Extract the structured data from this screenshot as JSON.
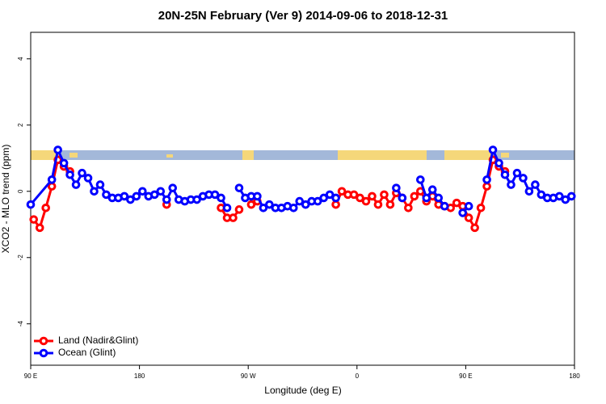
{
  "chart_data": {
    "type": "line",
    "title": "20N-25N February (Ver 9)   2014-09-06 to 2018-12-31",
    "x_label": "Longitude (deg E)",
    "y_label": "XCO2 - MLO trend (ppm)",
    "xlim": [
      90,
      540
    ],
    "ylim": [
      -5.25,
      4.8
    ],
    "xticks": [
      {
        "value": 90,
        "label": "90 E"
      },
      180,
      {
        "value": 270,
        "label": "90 W"
      },
      {
        "value": 360,
        "label": "0"
      },
      {
        "value": 450,
        "label": "90 E"
      },
      {
        "value": 540,
        "label": "180"
      }
    ],
    "yticks": [
      -4,
      -2,
      0,
      2,
      4
    ],
    "legend": "bottom-left",
    "series": [
      {
        "name": "Land (Nadir&Glint)",
        "color": "#ff0000",
        "x": [
          92.5,
          97.5,
          102.5,
          107.5,
          112.5,
          117.5,
          122.5,
          null,
          202.5,
          null,
          247.5,
          252.5,
          257.5,
          262.5,
          null,
          272.5,
          277.5,
          null,
          342.5,
          347.5,
          352.5,
          357.5,
          362.5,
          367.5,
          372.5,
          377.5,
          382.5,
          387.5,
          392.5,
          397.5,
          402.5,
          407.5,
          412.5,
          417.5,
          422.5,
          427.5,
          432.5,
          437.5,
          442.5,
          447.5,
          452.5,
          457.5,
          462.5,
          467.5,
          472.5,
          477.5,
          482.5
        ],
        "values": [
          -0.85,
          -1.1,
          -0.5,
          0.15,
          0.95,
          0.75,
          0.6,
          null,
          -0.4,
          null,
          -0.5,
          -0.8,
          -0.8,
          -0.55,
          null,
          -0.4,
          -0.3,
          null,
          -0.4,
          0.0,
          -0.1,
          -0.1,
          -0.2,
          -0.3,
          -0.15,
          -0.4,
          -0.1,
          -0.4,
          -0.05,
          -0.2,
          -0.5,
          -0.15,
          0.0,
          -0.3,
          -0.15,
          -0.4,
          -0.45,
          -0.5,
          -0.35,
          -0.45,
          -0.8,
          -1.1,
          -0.5,
          0.15,
          0.95,
          0.75,
          0.6
        ]
      },
      {
        "name": "Ocean (Glint)",
        "color": "#0000ff",
        "x": [
          90,
          107.5,
          112.5,
          117.5,
          122.5,
          127.5,
          132.5,
          137.5,
          142.5,
          147.5,
          152.5,
          157.5,
          162.5,
          167.5,
          172.5,
          177.5,
          182.5,
          187.5,
          192.5,
          197.5,
          202.5,
          207.5,
          212.5,
          217.5,
          222.5,
          227.5,
          232.5,
          237.5,
          242.5,
          247.5,
          252.5,
          null,
          262.5,
          267.5,
          272.5,
          277.5,
          282.5,
          287.5,
          292.5,
          297.5,
          302.5,
          307.5,
          312.5,
          317.5,
          322.5,
          327.5,
          332.5,
          337.5,
          342.5,
          null,
          392.5,
          397.5,
          null,
          412.5,
          417.5,
          422.5,
          427.5,
          432.5,
          null,
          447.5,
          452.5,
          null,
          467.5,
          472.5,
          477.5,
          482.5,
          487.5,
          492.5,
          497.5,
          502.5,
          507.5,
          512.5,
          517.5,
          522.5,
          527.5,
          532.5,
          537.5
        ],
        "values": [
          -0.4,
          0.35,
          1.25,
          0.85,
          0.5,
          0.2,
          0.55,
          0.4,
          0.0,
          0.2,
          -0.1,
          -0.2,
          -0.2,
          -0.15,
          -0.25,
          -0.15,
          0.0,
          -0.15,
          -0.1,
          0.0,
          -0.25,
          0.1,
          -0.25,
          -0.3,
          -0.25,
          -0.25,
          -0.15,
          -0.1,
          -0.1,
          -0.2,
          -0.5,
          null,
          0.1,
          -0.2,
          -0.15,
          -0.15,
          -0.5,
          -0.4,
          -0.5,
          -0.5,
          -0.45,
          -0.5,
          -0.3,
          -0.4,
          -0.3,
          -0.3,
          -0.2,
          -0.1,
          -0.2,
          null,
          0.1,
          -0.2,
          null,
          0.35,
          -0.2,
          0.05,
          -0.2,
          -0.45,
          null,
          -0.65,
          -0.45,
          null,
          0.35,
          1.25,
          0.85,
          0.5,
          0.2,
          0.55,
          0.4,
          0.0,
          0.2,
          -0.1,
          -0.2,
          -0.2,
          -0.15,
          -0.25,
          -0.15
        ]
      }
    ]
  }
}
